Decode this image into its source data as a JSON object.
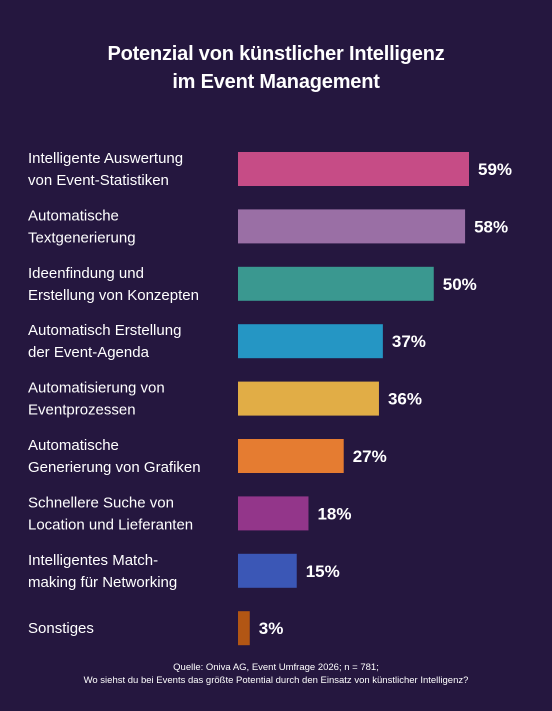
{
  "chart_data": {
    "type": "bar",
    "orientation": "horizontal",
    "title": "Potenzial von künstlicher Intelligenz im Event Management",
    "title_lines": [
      "Potenzial von künstlicher Intelligenz",
      "im Event Management"
    ],
    "categories": [
      [
        "Intelligente Auswertung",
        "von Event-Statistiken"
      ],
      [
        "Automatische",
        "Textgenerierung"
      ],
      [
        "Ideenfindung und",
        "Erstellung von Konzepten"
      ],
      [
        "Automatisch Erstellung",
        "der Event-Agenda"
      ],
      [
        "Automatisierung von",
        "Eventprozessen"
      ],
      [
        "Automatische",
        "Generierung von Grafiken"
      ],
      [
        "Schnellere Suche von",
        "Location und Lieferanten"
      ],
      [
        "Intelligentes Match-",
        "making für Networking"
      ],
      [
        "Sonstiges"
      ]
    ],
    "values": [
      59,
      58,
      50,
      37,
      36,
      27,
      18,
      15,
      3
    ],
    "value_labels": [
      "59%",
      "58%",
      "50%",
      "37%",
      "36%",
      "27%",
      "18%",
      "15%",
      "3%"
    ],
    "colors": [
      "#c64c86",
      "#9a6fa5",
      "#3a9890",
      "#2596c4",
      "#e1ad46",
      "#e57c31",
      "#93368a",
      "#3b57b6",
      "#b25614"
    ],
    "xlim": [
      0,
      59
    ],
    "grid": false,
    "legend": "none"
  },
  "footer": {
    "line1": "Quelle: Oniva AG, Event Umfrage 2026; n = 781;",
    "line2": "Wo siehst du bei Events das größte Potential durch den Einsatz von künstlicher Intelligenz?"
  },
  "colors": {
    "background": "#25173f",
    "text": "#ffffff"
  }
}
